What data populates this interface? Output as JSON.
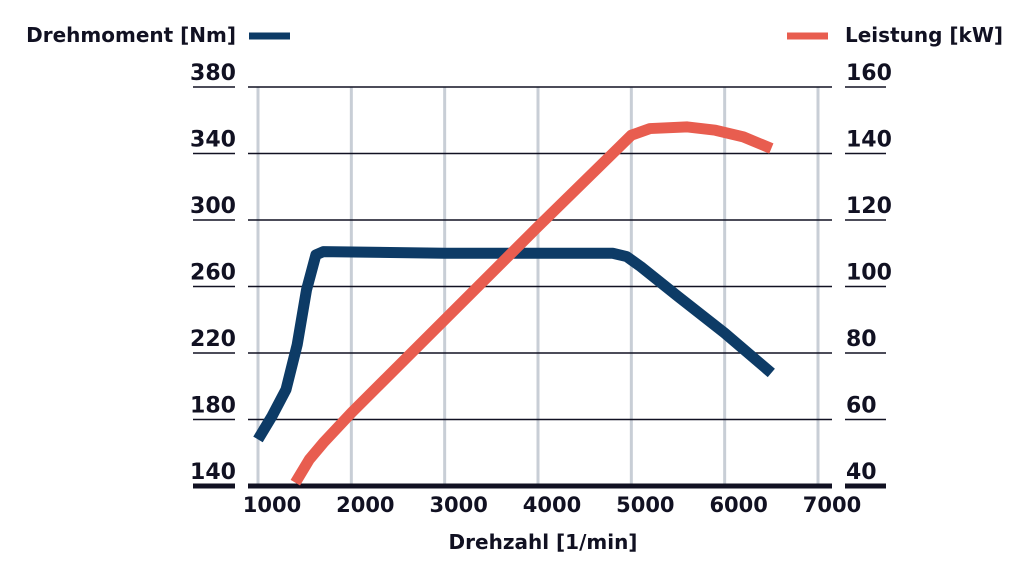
{
  "chart_data": {
    "type": "line",
    "title": "",
    "xlabel": "Drehzahl [1/min]",
    "x_ticks": [
      1000,
      2000,
      3000,
      4000,
      5000,
      6000,
      7000
    ],
    "xlim": [
      1000,
      7000
    ],
    "y_left": {
      "label": "Drehmoment [Nm]",
      "ticks": [
        140,
        180,
        220,
        260,
        300,
        340,
        380
      ],
      "ylim": [
        140,
        380
      ]
    },
    "y_right": {
      "label": "Leistung [kW]",
      "ticks": [
        40,
        60,
        80,
        100,
        120,
        140,
        160
      ],
      "ylim": [
        40,
        160
      ]
    },
    "grid": true,
    "series": [
      {
        "name": "Drehmoment [Nm]",
        "axis": "left",
        "color": "#0d3b66",
        "legend_position": "top-left",
        "points": [
          [
            1000,
            168
          ],
          [
            1150,
            182
          ],
          [
            1300,
            198
          ],
          [
            1420,
            225
          ],
          [
            1520,
            258
          ],
          [
            1620,
            279
          ],
          [
            1700,
            281
          ],
          [
            3000,
            280
          ],
          [
            4000,
            280
          ],
          [
            4800,
            280
          ],
          [
            4950,
            278
          ],
          [
            5100,
            272
          ],
          [
            5500,
            254
          ],
          [
            6000,
            232
          ],
          [
            6500,
            208
          ]
        ]
      },
      {
        "name": "Leistung [kW]",
        "axis": "right",
        "color": "#e85d4f",
        "legend_position": "top-right",
        "points": [
          [
            1400,
            41
          ],
          [
            1550,
            48
          ],
          [
            1700,
            53
          ],
          [
            2000,
            62
          ],
          [
            3000,
            90
          ],
          [
            4000,
            118
          ],
          [
            4800,
            140
          ],
          [
            5000,
            145.5
          ],
          [
            5200,
            147.5
          ],
          [
            5600,
            148
          ],
          [
            5900,
            147
          ],
          [
            6200,
            145
          ],
          [
            6500,
            141.5
          ]
        ]
      }
    ]
  }
}
